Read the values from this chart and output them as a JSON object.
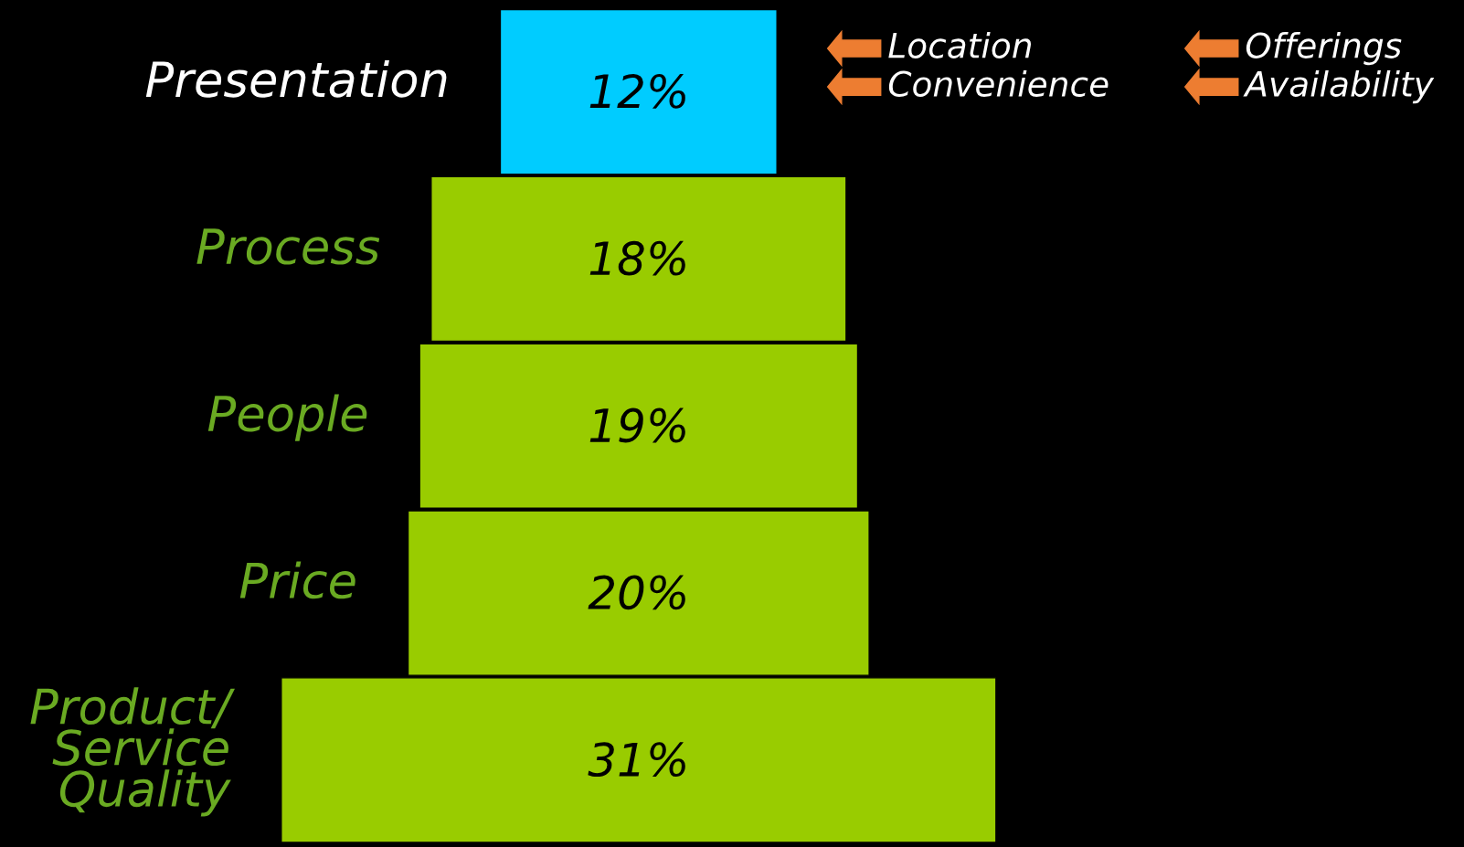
{
  "chart_data": {
    "type": "other",
    "categories": [
      "Presentation",
      "Process",
      "People",
      "Price",
      "Product/\nService\nQuality"
    ],
    "values": [
      12,
      18,
      19,
      20,
      31
    ],
    "value_labels": [
      "12%",
      "18%",
      "19%",
      "20%",
      "31%"
    ],
    "colors": [
      "#00ccff",
      "#99cc00",
      "#99cc00",
      "#99cc00",
      "#99cc00"
    ],
    "annotations": [
      "Location",
      "Convenience",
      "Offerings",
      "Availability"
    ]
  }
}
